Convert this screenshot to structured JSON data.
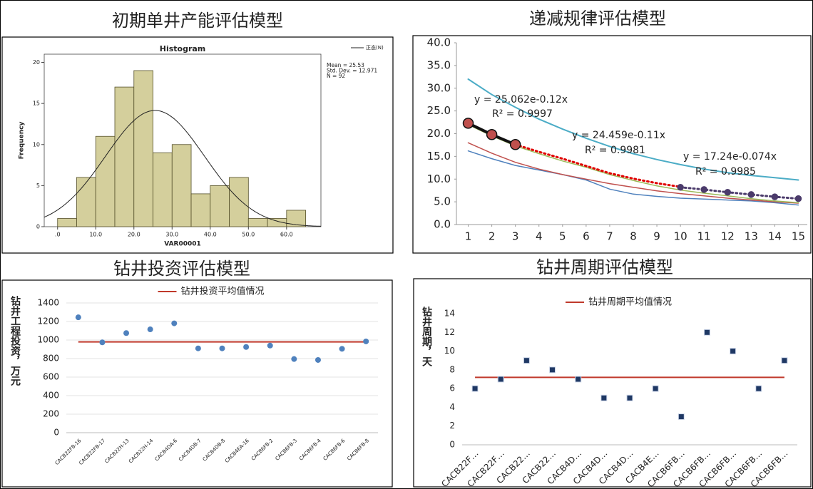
{
  "chart_data": [
    {
      "type": "histogram",
      "panel_title": "初期单井产能评估模型",
      "title": "Histogram",
      "x_label": "VAR00001",
      "y_label": "Frequency",
      "bins": [
        0,
        5,
        10,
        15,
        20,
        25,
        30,
        35,
        40,
        45,
        50,
        55,
        60,
        65
      ],
      "counts": [
        1,
        6,
        11,
        17,
        19,
        9,
        10,
        4,
        5,
        6,
        1,
        1,
        2
      ],
      "color": "#d4cf9c",
      "edge_color": "#55502a",
      "xlim": [
        -3.5,
        69
      ],
      "xticks": [
        {
          "value": 0,
          "label": ".0"
        },
        {
          "value": 10,
          "label": "10.0"
        },
        {
          "value": 20,
          "label": "20.0"
        },
        {
          "value": 30,
          "label": "30.0"
        },
        {
          "value": 40,
          "label": "40.0"
        },
        {
          "value": 50,
          "label": "50.0"
        },
        {
          "value": 60,
          "label": "60.0"
        }
      ],
      "ylim": [
        0,
        21
      ],
      "yticks": [
        0,
        5,
        10,
        15,
        20
      ],
      "curve_name": "正态(N)",
      "stats": [
        {
          "value": 25.53,
          "label": "Mean = 25.53"
        },
        {
          "value": 12.971,
          "label": "Std. Dev. = 12.971"
        },
        {
          "value": 92,
          "label": "N = 92"
        }
      ]
    },
    {
      "type": "line",
      "panel_title": "递减规律评估模型",
      "x": [
        1,
        2,
        3,
        4,
        5,
        6,
        7,
        8,
        9,
        10,
        11,
        12,
        13,
        14,
        15
      ],
      "xlim": [
        0.5,
        15.5
      ],
      "xticks": [
        1,
        2,
        3,
        4,
        5,
        6,
        7,
        8,
        9,
        10,
        11,
        12,
        13,
        14,
        15
      ],
      "ylim": [
        0,
        40
      ],
      "yticks": [
        {
          "value": 0,
          "label": "0.0"
        },
        {
          "value": 5,
          "label": "5.0"
        },
        {
          "value": 10,
          "label": "10.0"
        },
        {
          "value": 15,
          "label": "15.0"
        },
        {
          "value": 20,
          "label": "20.0"
        },
        {
          "value": 25,
          "label": "25.0"
        },
        {
          "value": 30,
          "label": "30.0"
        },
        {
          "value": 35,
          "label": "35.0"
        },
        {
          "value": 40,
          "label": "40.0"
        }
      ],
      "series": [
        {
          "color": "#4bacc6",
          "width": 2,
          "dashed": false,
          "marker": 0,
          "values": [
            32,
            28.6,
            25.8,
            23.2,
            21,
            19,
            17.2,
            15.6,
            14.3,
            13.2,
            12.2,
            11.4,
            10.8,
            10.3,
            9.8
          ]
        },
        {
          "color": "#4f81bd",
          "width": 1.5,
          "dashed": false,
          "marker": 0,
          "values": [
            16.2,
            14.5,
            13,
            12,
            11,
            9.8,
            7.8,
            6.7,
            6.2,
            5.8,
            5.6,
            5.4,
            5.2,
            4.8,
            4.3
          ]
        },
        {
          "color": "#c0504d",
          "width": 1.5,
          "dashed": false,
          "marker": 0,
          "values": [
            18,
            15.7,
            13.7,
            12.2,
            11,
            10,
            9,
            8.2,
            7.4,
            6.8,
            6.3,
            5.8,
            5.4,
            5,
            4.7
          ]
        },
        {
          "color": "#9bbb59",
          "width": 1.5,
          "dashed": false,
          "marker": 0,
          "values": [
            22,
            19.5,
            17.3,
            15.6,
            14,
            12.6,
            11,
            9.7,
            8.5,
            7.6,
            6.9,
            6.3,
            5.7,
            5.2,
            4.8
          ]
        },
        {
          "color": "#e00000",
          "width": 3,
          "dashed": true,
          "marker": 0,
          "values": [
            null,
            null,
            17.6,
            16,
            14.5,
            12.9,
            11.3,
            10.1,
            9.1,
            8.3,
            null,
            null,
            null,
            null,
            null
          ]
        },
        {
          "color": "#4b3b6b",
          "width": 3,
          "dashed": true,
          "marker": 4,
          "values": [
            null,
            null,
            null,
            null,
            null,
            null,
            null,
            null,
            null,
            8.2,
            7.7,
            7.1,
            6.6,
            6.1,
            5.7
          ]
        },
        {
          "color": "#111111",
          "width": 4,
          "dashed": false,
          "marker": 7,
          "marker_color": "#c0504d",
          "values": [
            22.3,
            19.8,
            17.6,
            null,
            null,
            null,
            null,
            null,
            null,
            null,
            null,
            null,
            null,
            null,
            null
          ]
        }
      ],
      "annotations": [
        "y = 25.062e-0.12x",
        "R² = 0.9997",
        "y = 24.459e-0.11x",
        "R² = 0.9981",
        "y = 17.24e-0.074x",
        "R² = 0.9985"
      ]
    },
    {
      "type": "scatter",
      "panel_title": "钻井投资评估模型",
      "y_label": "钻井工程投资，万元",
      "marker": "circle",
      "color": "#4f81bd",
      "grid": true,
      "label_size": 7,
      "categories": [
        "CACB22FB-16",
        "CACB22FB-17",
        "CACB22H-13",
        "CACB22H-14",
        "CACB4DA-6",
        "CACB4DB-7",
        "CACB4DB-8",
        "CACB4EA-16",
        "CACB6FB-2",
        "CACB6FB-3",
        "CACB6FB-4",
        "CACB6FB-6",
        "CACB6FB-8"
      ],
      "values": [
        1245,
        975,
        1075,
        1115,
        1180,
        910,
        910,
        925,
        940,
        795,
        785,
        905,
        985
      ],
      "ylim": [
        0,
        1400
      ],
      "yticks": [
        0,
        200,
        400,
        600,
        800,
        1000,
        1200,
        1400
      ],
      "average": {
        "name": "钻井投资平均值情况",
        "value": 980,
        "color": "#c0392b"
      }
    },
    {
      "type": "scatter",
      "panel_title": "钻井周期评估模型",
      "y_label": "钻井周期，天",
      "marker": "square",
      "color": "#1f3864",
      "grid": false,
      "label_size": 12,
      "categories": [
        "CACB22F…",
        "CACB22F…",
        "CACB22…",
        "CACB22…",
        "CACB4D…",
        "CACB4D…",
        "CACB4D…",
        "CACB4E…",
        "CACB6FB…",
        "CACB6FB…",
        "CACB6FB…",
        "CACB6FB…",
        "CACB6FB…"
      ],
      "values": [
        6,
        7,
        9,
        8,
        7,
        5,
        5,
        6,
        3,
        12,
        10,
        6,
        9
      ],
      "ylim": [
        0,
        14
      ],
      "yticks": [
        0,
        2,
        4,
        6,
        8,
        10,
        12,
        14
      ],
      "average": {
        "name": "钻井周期平均值情况",
        "value": 7.2,
        "color": "#c0392b"
      }
    }
  ]
}
